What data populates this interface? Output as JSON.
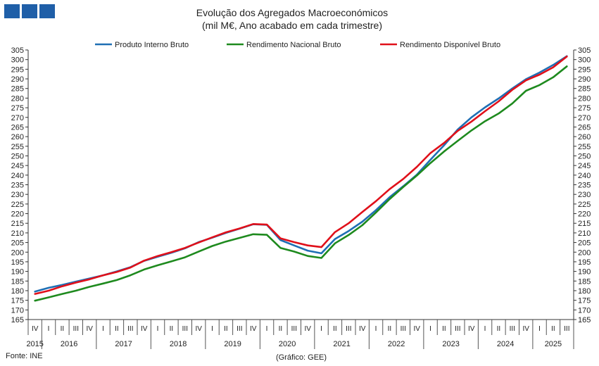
{
  "chart_data": {
    "type": "line",
    "title": "Evolução dos Agregados Macroeconómicos",
    "subtitle": "(mil M€, Ano acabado em cada trimestre)",
    "xlabel": "",
    "ylabel": "",
    "ylim": [
      165,
      305
    ],
    "y_ticks": [
      165,
      170,
      175,
      180,
      185,
      190,
      195,
      200,
      205,
      210,
      215,
      220,
      225,
      230,
      235,
      240,
      245,
      250,
      255,
      260,
      265,
      270,
      275,
      280,
      285,
      290,
      295,
      300,
      305
    ],
    "secondary_y_axis": true,
    "grid": false,
    "legend_position": "top",
    "quarter_labels": [
      "IV",
      "I",
      "II",
      "III",
      "IV",
      "I",
      "II",
      "III",
      "IV",
      "I",
      "II",
      "III",
      "IV",
      "I",
      "II",
      "III",
      "IV",
      "I",
      "II",
      "III",
      "IV",
      "I",
      "II",
      "III",
      "IV",
      "I",
      "II",
      "III",
      "IV",
      "I",
      "II",
      "III",
      "IV",
      "I",
      "II",
      "III",
      "IV",
      "I",
      "II",
      "III"
    ],
    "year_groups": [
      {
        "year": "2015",
        "start": 0,
        "end": 0
      },
      {
        "year": "2016",
        "start": 1,
        "end": 4
      },
      {
        "year": "2017",
        "start": 5,
        "end": 8
      },
      {
        "year": "2018",
        "start": 9,
        "end": 12
      },
      {
        "year": "2019",
        "start": 13,
        "end": 16
      },
      {
        "year": "2020",
        "start": 17,
        "end": 20
      },
      {
        "year": "2021",
        "start": 21,
        "end": 24
      },
      {
        "year": "2022",
        "start": 25,
        "end": 28
      },
      {
        "year": "2023",
        "start": 29,
        "end": 32
      },
      {
        "year": "2024",
        "start": 33,
        "end": 36
      },
      {
        "year": "2025",
        "start": 37,
        "end": 39
      }
    ],
    "series": [
      {
        "name": "Produto Interno Bruto",
        "color": "#1f6fb4",
        "values": [
          179.5,
          181.5,
          183.0,
          184.7,
          186.3,
          188.0,
          190.0,
          192.2,
          195.5,
          197.6,
          199.7,
          202.0,
          205.2,
          207.5,
          210.0,
          212.2,
          214.5,
          214.2,
          206.3,
          203.5,
          200.8,
          199.4,
          206.8,
          211.0,
          215.8,
          221.8,
          228.5,
          234.2,
          240.2,
          248.0,
          255.5,
          263.7,
          270.0,
          275.2,
          279.8,
          285.0,
          289.8,
          293.3,
          297.2,
          301.8
        ]
      },
      {
        "name": "Rendimento Nacional Bruto",
        "color": "#1e8a1e",
        "values": [
          174.8,
          176.5,
          178.3,
          180.0,
          182.0,
          183.7,
          185.5,
          188.0,
          191.0,
          193.2,
          195.2,
          197.3,
          200.3,
          203.2,
          205.5,
          207.4,
          209.3,
          209.0,
          202.2,
          200.3,
          198.0,
          197.0,
          204.6,
          208.9,
          214.0,
          220.6,
          227.5,
          233.8,
          239.8,
          246.3,
          252.3,
          257.8,
          263.2,
          268.0,
          272.0,
          277.2,
          283.8,
          286.8,
          290.8,
          296.5
        ]
      },
      {
        "name": "Rendimento Disponível Bruto",
        "color": "#e0101a",
        "values": [
          178.3,
          180.0,
          182.3,
          184.2,
          185.9,
          188.0,
          189.7,
          192.0,
          195.6,
          198.0,
          200.0,
          202.2,
          205.0,
          207.7,
          210.3,
          212.3,
          214.6,
          214.3,
          207.2,
          205.2,
          203.5,
          202.6,
          210.4,
          215.0,
          220.8,
          226.5,
          232.7,
          238.0,
          244.3,
          251.5,
          256.7,
          263.0,
          267.8,
          273.2,
          278.3,
          284.3,
          289.2,
          292.2,
          296.0,
          301.6
        ]
      }
    ]
  },
  "footer": {
    "source": "Fonte: INE",
    "credit": "(Gráfico: GEE)"
  }
}
